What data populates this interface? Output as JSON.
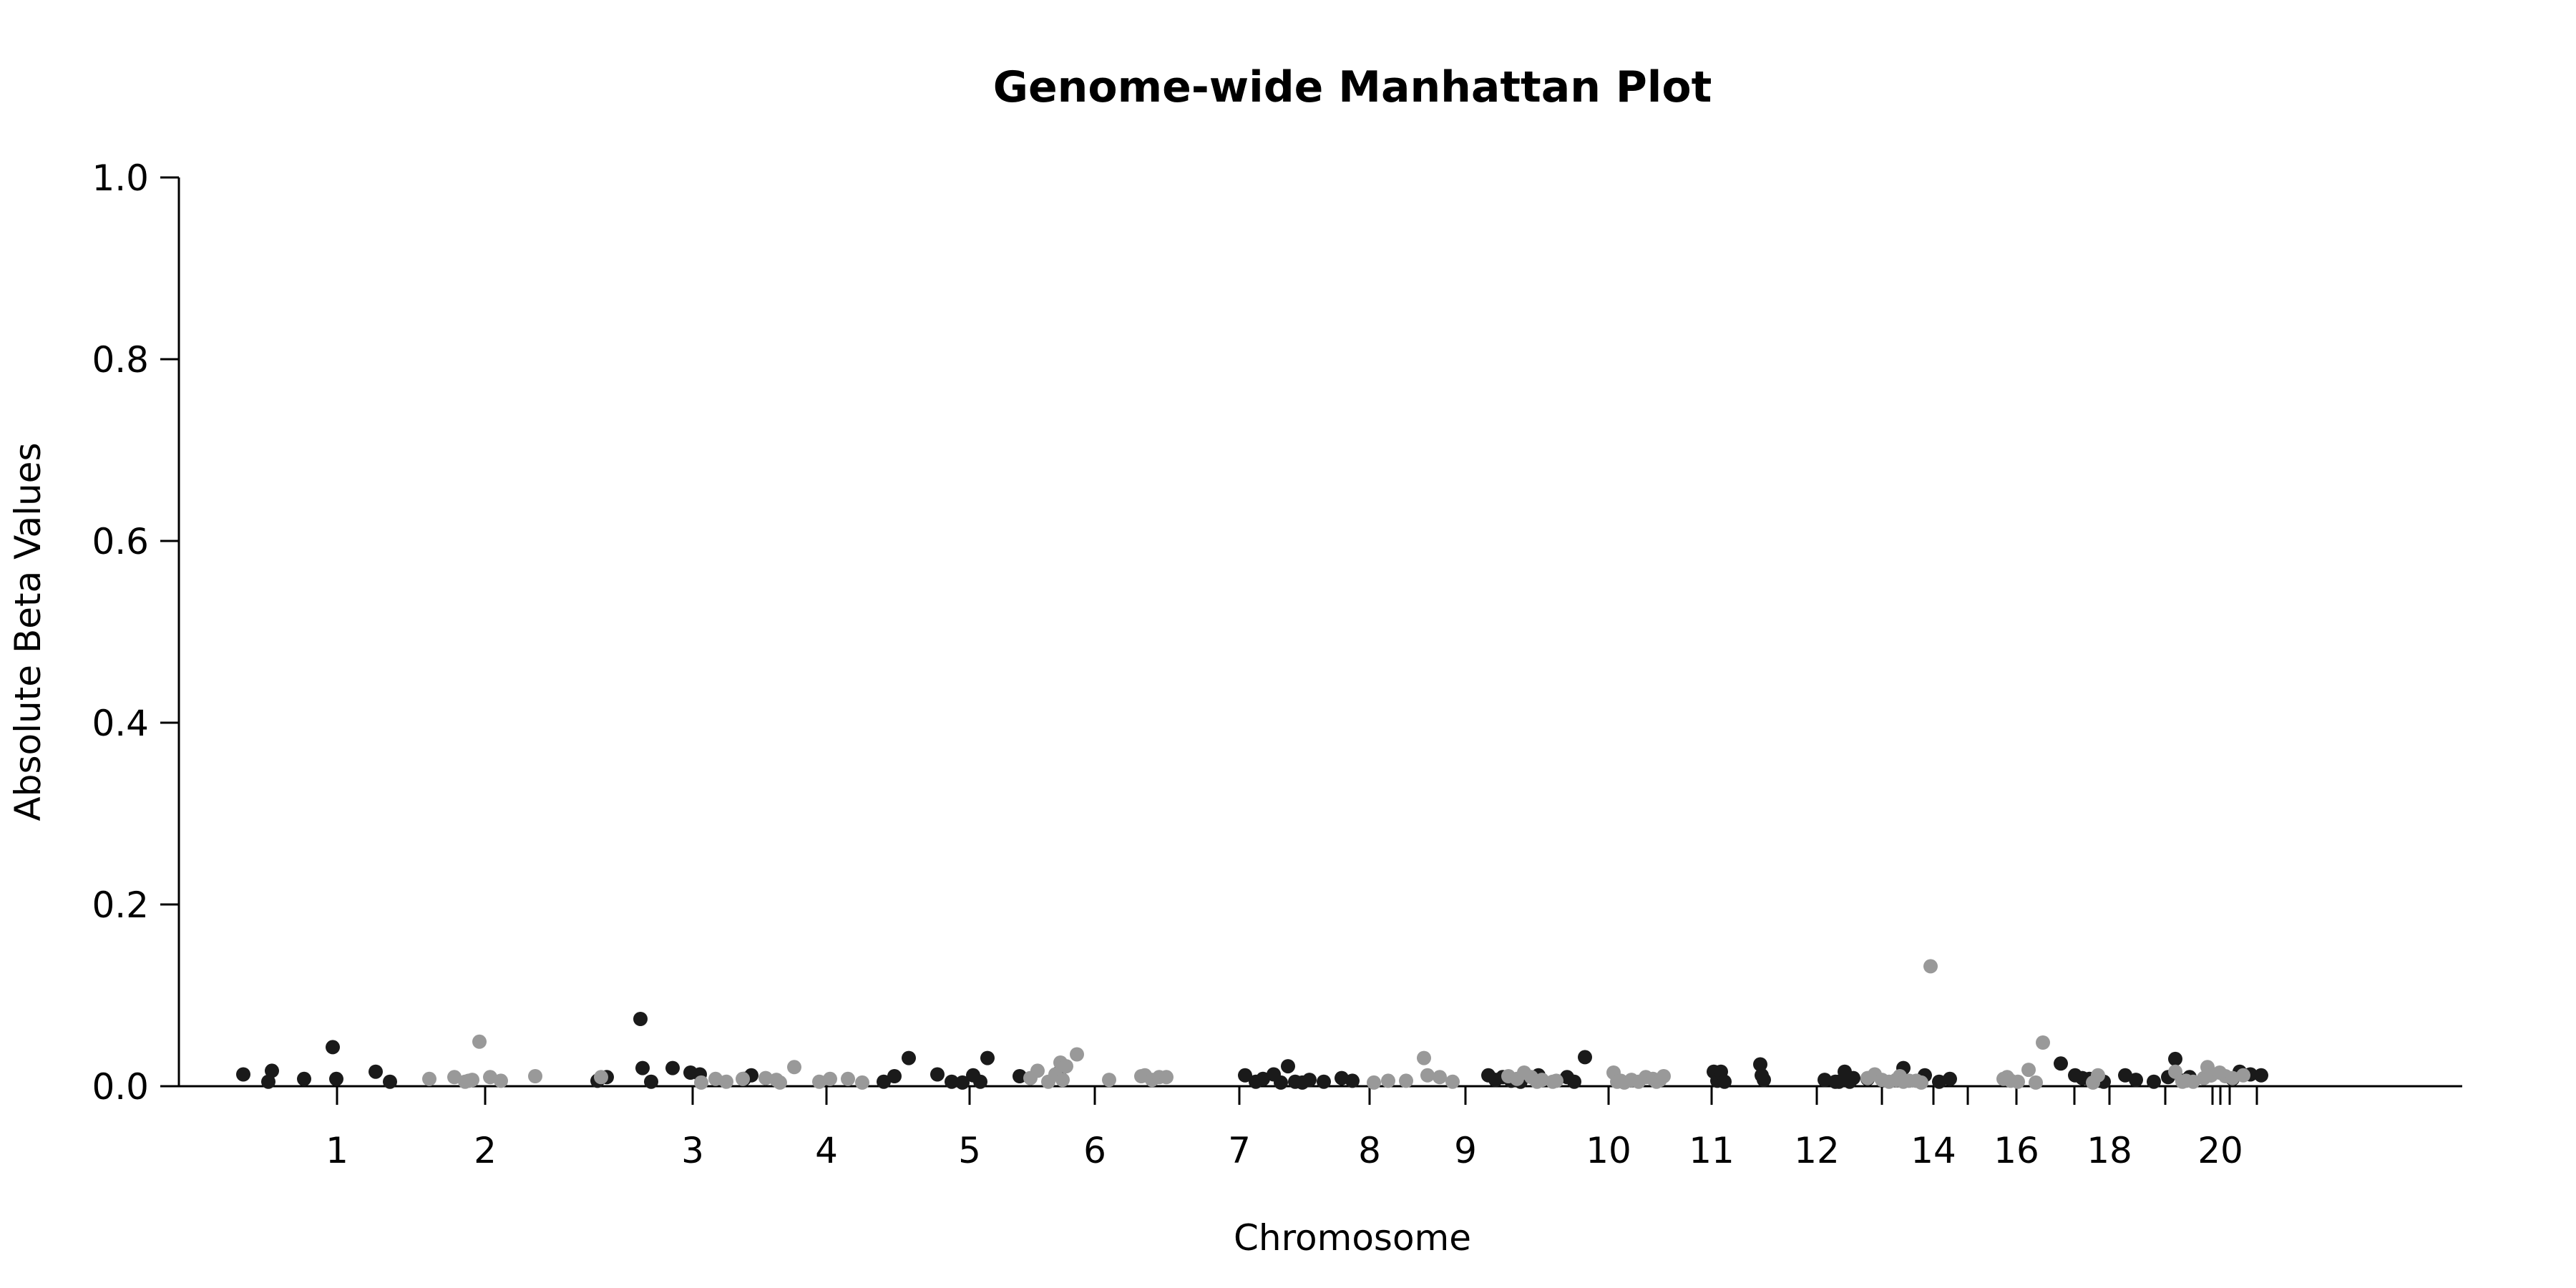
{
  "chart_data": {
    "type": "scatter",
    "title": "Genome-wide Manhattan Plot",
    "xlabel": "Chromosome",
    "ylabel": "Absolute Beta Values",
    "ylim": [
      0,
      1
    ],
    "xlim": [
      0.0,
      3.32
    ],
    "yticks": [
      "0.0",
      "0.2",
      "0.4",
      "0.6",
      "0.8",
      "1.0"
    ],
    "grid": false,
    "legend": "none",
    "colors": {
      "odd": "#1a1a1a",
      "even": "#999999"
    },
    "chromosome_ticks": [
      {
        "pos": 0.221,
        "label": "1"
      },
      {
        "pos": 0.428,
        "label": "2"
      },
      {
        "pos": 0.718,
        "label": "3"
      },
      {
        "pos": 0.905,
        "label": "4"
      },
      {
        "pos": 1.105,
        "label": "5"
      },
      {
        "pos": 1.28,
        "label": "6"
      },
      {
        "pos": 1.482,
        "label": "7"
      },
      {
        "pos": 1.664,
        "label": "8"
      },
      {
        "pos": 1.798,
        "label": "9"
      },
      {
        "pos": 1.998,
        "label": "10"
      },
      {
        "pos": 2.142,
        "label": "11"
      },
      {
        "pos": 2.289,
        "label": "12"
      },
      {
        "pos": 2.38,
        "label": ""
      },
      {
        "pos": 2.452,
        "label": "14"
      },
      {
        "pos": 2.5,
        "label": ""
      },
      {
        "pos": 2.568,
        "label": "16"
      },
      {
        "pos": 2.649,
        "label": ""
      },
      {
        "pos": 2.698,
        "label": "18"
      },
      {
        "pos": 2.776,
        "label": ""
      },
      {
        "pos": 2.842,
        "label": ""
      },
      {
        "pos": 2.853,
        "label": "20"
      },
      {
        "pos": 2.866,
        "label": ""
      },
      {
        "pos": 2.904,
        "label": ""
      }
    ],
    "series": [
      {
        "color": "#1a1a1a",
        "x": [
          0.09,
          0.125,
          0.13,
          0.175,
          0.215,
          0.22,
          0.275,
          0.295,
          0.585,
          0.598,
          0.645,
          0.648,
          0.66,
          0.69,
          0.715,
          0.728,
          0.79,
          0.8,
          0.985,
          1.0,
          1.02,
          1.06,
          1.08,
          1.095,
          1.11,
          1.12,
          1.13,
          1.175,
          1.23,
          1.49,
          1.505,
          1.515,
          1.53,
          1.54,
          1.55,
          1.56,
          1.57,
          1.58,
          1.6,
          1.625,
          1.64,
          1.83,
          1.84,
          1.85,
          1.862,
          1.875,
          1.9,
          1.94,
          1.95,
          1.965,
          2.145,
          2.15,
          2.155,
          2.16,
          2.21,
          2.212,
          2.215,
          2.3,
          2.315,
          2.32,
          2.328,
          2.335,
          2.34,
          2.36,
          2.41,
          2.44,
          2.46,
          2.475,
          2.63,
          2.65,
          2.66,
          2.67,
          2.68,
          2.685,
          2.69,
          2.72,
          2.735,
          2.76,
          2.78,
          2.79,
          2.8,
          2.81,
          2.84,
          2.87,
          2.88,
          2.895,
          2.91
        ],
        "y": [
          0.013,
          0.005,
          0.017,
          0.008,
          0.043,
          0.008,
          0.016,
          0.005,
          0.006,
          0.01,
          0.074,
          0.02,
          0.005,
          0.02,
          0.015,
          0.013,
          0.008,
          0.012,
          0.005,
          0.011,
          0.031,
          0.013,
          0.005,
          0.004,
          0.012,
          0.005,
          0.031,
          0.011,
          0.015,
          0.012,
          0.005,
          0.008,
          0.013,
          0.004,
          0.022,
          0.005,
          0.004,
          0.007,
          0.005,
          0.009,
          0.006,
          0.012,
          0.007,
          0.01,
          0.006,
          0.005,
          0.012,
          0.01,
          0.005,
          0.032,
          0.016,
          0.006,
          0.016,
          0.005,
          0.024,
          0.012,
          0.007,
          0.007,
          0.005,
          0.005,
          0.016,
          0.005,
          0.009,
          0.008,
          0.02,
          0.012,
          0.005,
          0.008,
          0.025,
          0.012,
          0.009,
          0.008,
          0.008,
          0.006,
          0.005,
          0.012,
          0.007,
          0.005,
          0.01,
          0.03,
          0.006,
          0.01,
          0.012,
          0.008,
          0.016,
          0.013,
          0.012
        ]
      },
      {
        "color": "#999999",
        "x": [
          0.35,
          0.385,
          0.4,
          0.405,
          0.41,
          0.42,
          0.435,
          0.45,
          0.498,
          0.59,
          0.73,
          0.75,
          0.765,
          0.788,
          0.82,
          0.835,
          0.84,
          0.86,
          0.895,
          0.91,
          0.935,
          0.955,
          1.19,
          1.2,
          1.215,
          1.225,
          1.232,
          1.235,
          1.24,
          1.255,
          1.3,
          1.345,
          1.35,
          1.36,
          1.37,
          1.38,
          1.67,
          1.69,
          1.715,
          1.74,
          1.745,
          1.762,
          1.78,
          1.858,
          1.87,
          1.88,
          1.89,
          1.898,
          1.905,
          1.92,
          1.925,
          2.005,
          2.01,
          2.015,
          2.02,
          2.03,
          2.04,
          2.05,
          2.06,
          2.065,
          2.07,
          2.075,
          2.36,
          2.37,
          2.38,
          2.39,
          2.4,
          2.405,
          2.41,
          2.418,
          2.428,
          2.435,
          2.448,
          2.55,
          2.555,
          2.56,
          2.57,
          2.585,
          2.595,
          2.605,
          2.675,
          2.682,
          2.79,
          2.8,
          2.805,
          2.815,
          2.83,
          2.835,
          2.84,
          2.852,
          2.86,
          2.87,
          2.885
        ],
        "y": [
          0.008,
          0.01,
          0.005,
          0.006,
          0.007,
          0.049,
          0.01,
          0.006,
          0.011,
          0.01,
          0.004,
          0.008,
          0.005,
          0.008,
          0.009,
          0.007,
          0.004,
          0.021,
          0.005,
          0.008,
          0.008,
          0.004,
          0.009,
          0.017,
          0.005,
          0.013,
          0.026,
          0.007,
          0.022,
          0.035,
          0.007,
          0.011,
          0.012,
          0.007,
          0.01,
          0.01,
          0.004,
          0.006,
          0.006,
          0.031,
          0.012,
          0.01,
          0.005,
          0.011,
          0.008,
          0.015,
          0.01,
          0.005,
          0.007,
          0.005,
          0.006,
          0.015,
          0.005,
          0.006,
          0.004,
          0.007,
          0.005,
          0.01,
          0.008,
          0.005,
          0.007,
          0.011,
          0.009,
          0.013,
          0.007,
          0.005,
          0.007,
          0.011,
          0.005,
          0.006,
          0.006,
          0.004,
          0.132,
          0.008,
          0.01,
          0.006,
          0.005,
          0.018,
          0.004,
          0.048,
          0.004,
          0.012,
          0.016,
          0.005,
          0.006,
          0.005,
          0.009,
          0.021,
          0.012,
          0.015,
          0.011,
          0.009,
          0.012
        ]
      }
    ]
  }
}
